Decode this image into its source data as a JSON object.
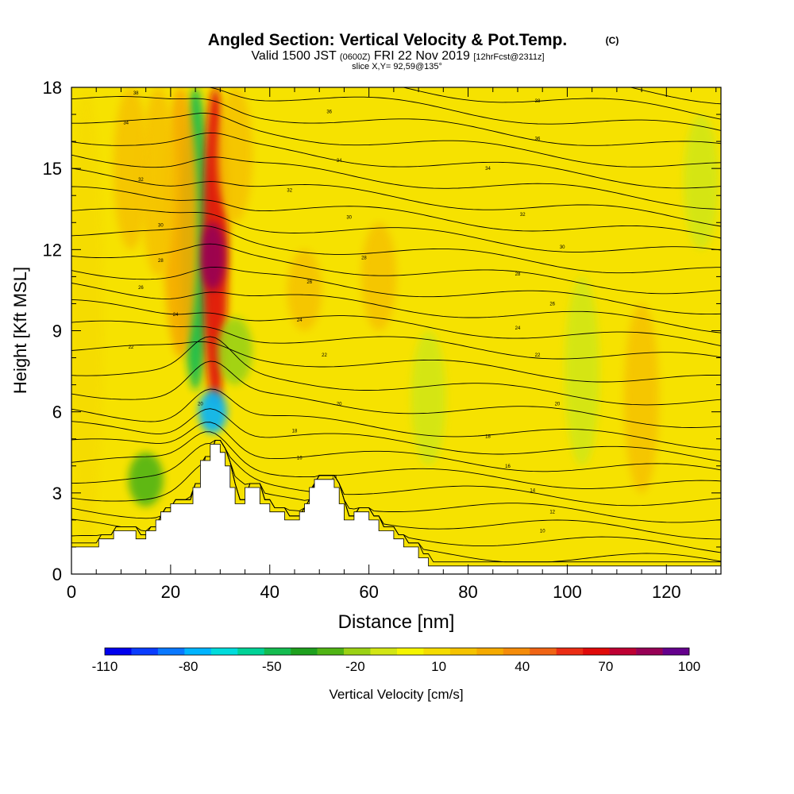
{
  "chart_data": {
    "type": "heatmap",
    "title": "Angled Section: Vertical Velocity & Pot.Temp.",
    "title_unit": "(C)",
    "subtitle": {
      "valid": "Valid 1500 JST",
      "utc": "(0600Z)",
      "date": "FRI 22 Nov 2019",
      "fcst": "[12hrFcst@2311z]"
    },
    "slice": "slice X,Y= 92,59@135°",
    "xlabel": "Distance [nm]",
    "ylabel": "Height [Kft MSL]",
    "xlim": [
      0,
      131
    ],
    "ylim": [
      0,
      18
    ],
    "x_ticks": [
      0,
      20,
      40,
      60,
      80,
      100,
      120
    ],
    "y_ticks": [
      0,
      3,
      6,
      9,
      12,
      15,
      18
    ],
    "colorbar": {
      "label": "Vertical Velocity [cm/s]",
      "tick_labels": [
        "-110",
        "-80",
        "-50",
        "-20",
        "10",
        "40",
        "70",
        "100"
      ],
      "tick_values": [
        -110,
        -80,
        -50,
        -20,
        10,
        40,
        70,
        100
      ],
      "levels": [
        -110,
        -100,
        -90,
        -80,
        -70,
        -60,
        -50,
        -40,
        -30,
        -20,
        -10,
        0,
        10,
        20,
        30,
        40,
        50,
        60,
        70,
        80,
        90,
        100
      ],
      "colors": [
        "#0000ee",
        "#0a3cff",
        "#0a78ff",
        "#00b4ff",
        "#00dcdc",
        "#00d296",
        "#14bc50",
        "#1ea01e",
        "#50b414",
        "#9bd214",
        "#d2e614",
        "#f5f500",
        "#f5dc00",
        "#f5c300",
        "#f5aa00",
        "#f58c0a",
        "#f06414",
        "#eb2d14",
        "#e00a0a",
        "#be0032",
        "#960055",
        "#64008c"
      ]
    },
    "velocity_features": [
      {
        "x": 25,
        "y0": 6.8,
        "y1": 18,
        "w": -45
      },
      {
        "x": 29,
        "y0": 6.2,
        "y1": 18,
        "w": 78
      },
      {
        "x": 28.5,
        "y0": 10.5,
        "y1": 13,
        "w": 100
      },
      {
        "x": 22,
        "y0": 8,
        "y1": 18,
        "w": 38
      },
      {
        "x": 17.5,
        "y0": 11,
        "y1": 18,
        "w": 28
      },
      {
        "x": 12,
        "y0": 12,
        "y1": 18,
        "w": 24
      },
      {
        "x": 33,
        "y0": 13,
        "y1": 18,
        "w": 25
      },
      {
        "x": 47,
        "y0": 9,
        "y1": 12,
        "w": 28
      },
      {
        "x": 62,
        "y0": 9,
        "y1": 13,
        "w": 24
      },
      {
        "x": 33,
        "y0": 7,
        "y1": 9.5,
        "w": -10
      },
      {
        "x": 28.5,
        "y0": 5.2,
        "y1": 6.8,
        "w": -70
      },
      {
        "x": 15,
        "y0": 2.5,
        "y1": 4.5,
        "w": -25
      },
      {
        "x": 72,
        "y0": 4,
        "y1": 9,
        "w": 0
      },
      {
        "x": 103,
        "y0": 4,
        "y1": 11,
        "w": 0
      },
      {
        "x": 127,
        "y0": 12,
        "y1": 17,
        "w": 0
      },
      {
        "x": 115,
        "y0": 3,
        "y1": 10,
        "w": 24
      },
      {
        "x": 3,
        "y0": 1,
        "y1": 18,
        "w": 20
      }
    ],
    "terrain": [
      [
        0,
        1
      ],
      [
        5.5,
        1
      ],
      [
        5.5,
        1.3
      ],
      [
        8.5,
        1.3
      ],
      [
        8.5,
        1.6
      ],
      [
        13,
        1.6
      ],
      [
        13,
        1.3
      ],
      [
        15,
        1.3
      ],
      [
        15,
        1.6
      ],
      [
        17,
        1.6
      ],
      [
        17,
        2.0
      ],
      [
        18,
        2.0
      ],
      [
        18,
        2.3
      ],
      [
        20,
        2.3
      ],
      [
        20,
        2.6
      ],
      [
        22,
        2.6
      ],
      [
        22,
        2.6
      ],
      [
        24.5,
        2.6
      ],
      [
        24.5,
        3.2
      ],
      [
        26,
        3.2
      ],
      [
        26,
        4.2
      ],
      [
        28,
        4.2
      ],
      [
        28,
        4.8
      ],
      [
        30,
        4.8
      ],
      [
        30,
        4.5
      ],
      [
        31,
        4.5
      ],
      [
        31,
        4.0
      ],
      [
        32,
        4.0
      ],
      [
        32,
        3.2
      ],
      [
        33,
        3.2
      ],
      [
        33,
        2.6
      ],
      [
        35,
        2.6
      ],
      [
        35,
        3.2
      ],
      [
        38,
        3.2
      ],
      [
        38,
        2.6
      ],
      [
        40,
        2.6
      ],
      [
        40,
        2.3
      ],
      [
        43,
        2.3
      ],
      [
        43,
        2.0
      ],
      [
        46,
        2.0
      ],
      [
        46,
        2.3
      ],
      [
        47,
        2.3
      ],
      [
        47,
        2.6
      ],
      [
        48,
        2.6
      ],
      [
        48,
        3.2
      ],
      [
        49,
        3.2
      ],
      [
        49,
        3.5
      ],
      [
        53,
        3.5
      ],
      [
        53,
        3.2
      ],
      [
        54,
        3.2
      ],
      [
        54,
        2.6
      ],
      [
        55,
        2.6
      ],
      [
        55,
        2.0
      ],
      [
        57,
        2.0
      ],
      [
        57,
        2.3
      ],
      [
        60,
        2.3
      ],
      [
        60,
        2.0
      ],
      [
        62,
        2.0
      ],
      [
        62,
        1.6
      ],
      [
        65,
        1.6
      ],
      [
        65,
        1.3
      ],
      [
        67,
        1.3
      ],
      [
        67,
        1.0
      ],
      [
        70,
        1.0
      ],
      [
        70,
        0.6
      ],
      [
        72,
        0.6
      ],
      [
        72,
        0.3
      ],
      [
        131,
        0.3
      ]
    ],
    "contours": {
      "count": 30,
      "left_heights": [
        0.6,
        1.2,
        1.8,
        2.4,
        3.0,
        3.6,
        4.2,
        4.8,
        5.4,
        6.0,
        6.8,
        7.6,
        8.4,
        9.2,
        9.9,
        10.6,
        11.3,
        12.0,
        12.7,
        13.4,
        14.1,
        14.8,
        15.5,
        16.2,
        16.9,
        17.6,
        18.3,
        19.0,
        19.7,
        20.4
      ],
      "right_drop": 3.2
    },
    "contour_labels": [
      {
        "x": 13,
        "y": 17.8,
        "text": "38"
      },
      {
        "x": 11,
        "y": 16.7,
        "text": "34"
      },
      {
        "x": 14,
        "y": 14.6,
        "text": "32"
      },
      {
        "x": 18,
        "y": 12.9,
        "text": "30"
      },
      {
        "x": 18,
        "y": 11.6,
        "text": "28"
      },
      {
        "x": 14,
        "y": 10.6,
        "text": "26"
      },
      {
        "x": 21,
        "y": 9.6,
        "text": "24"
      },
      {
        "x": 12,
        "y": 8.4,
        "text": "22"
      },
      {
        "x": 26,
        "y": 6.3,
        "text": "20"
      },
      {
        "x": 52,
        "y": 17.1,
        "text": "36"
      },
      {
        "x": 54,
        "y": 15.3,
        "text": "34"
      },
      {
        "x": 44,
        "y": 14.2,
        "text": "32"
      },
      {
        "x": 56,
        "y": 13.2,
        "text": "30"
      },
      {
        "x": 59,
        "y": 11.7,
        "text": "28"
      },
      {
        "x": 48,
        "y": 10.8,
        "text": "26"
      },
      {
        "x": 46,
        "y": 9.4,
        "text": "24"
      },
      {
        "x": 51,
        "y": 8.1,
        "text": "22"
      },
      {
        "x": 54,
        "y": 6.3,
        "text": "20"
      },
      {
        "x": 45,
        "y": 5.3,
        "text": "18"
      },
      {
        "x": 46,
        "y": 4.3,
        "text": "16"
      },
      {
        "x": 53,
        "y": 3.6,
        "text": "14"
      },
      {
        "x": 94,
        "y": 17.5,
        "text": "38"
      },
      {
        "x": 94,
        "y": 16.1,
        "text": "36"
      },
      {
        "x": 84,
        "y": 15.0,
        "text": "34"
      },
      {
        "x": 91,
        "y": 13.3,
        "text": "32"
      },
      {
        "x": 99,
        "y": 12.1,
        "text": "30"
      },
      {
        "x": 90,
        "y": 11.1,
        "text": "28"
      },
      {
        "x": 97,
        "y": 10.0,
        "text": "26"
      },
      {
        "x": 90,
        "y": 9.1,
        "text": "24"
      },
      {
        "x": 94,
        "y": 8.1,
        "text": "22"
      },
      {
        "x": 98,
        "y": 6.3,
        "text": "20"
      },
      {
        "x": 84,
        "y": 5.1,
        "text": "18"
      },
      {
        "x": 88,
        "y": 4.0,
        "text": "16"
      },
      {
        "x": 93,
        "y": 3.1,
        "text": "14"
      },
      {
        "x": 97,
        "y": 2.3,
        "text": "12"
      },
      {
        "x": 95,
        "y": 1.6,
        "text": "10"
      }
    ]
  }
}
